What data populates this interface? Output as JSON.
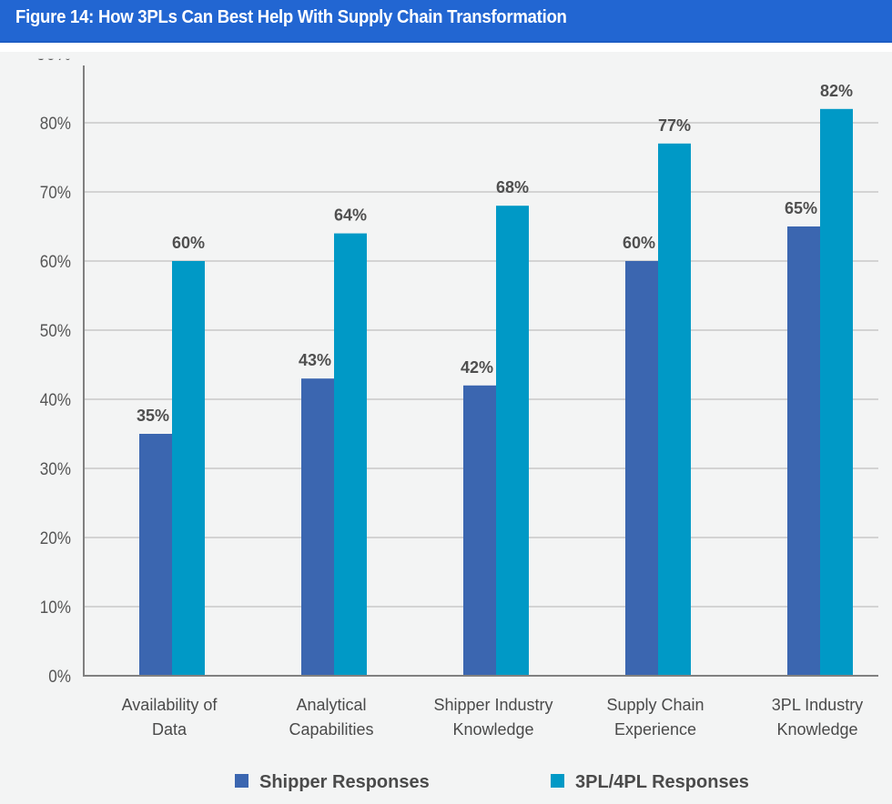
{
  "header": {
    "title": "Figure 14: How 3PLs Can Best Help With Supply Chain Transformation"
  },
  "colors": {
    "header_bg": "#2266d2",
    "shipper": "#3b66b0",
    "tpl": "#0099c6",
    "background": "#f3f4f4",
    "grid": "#d3d3d3",
    "axis": "#808080"
  },
  "chart_data": {
    "type": "bar",
    "title": "Figure 14: How 3PLs Can Best Help With Supply Chain Transformation",
    "xlabel": "",
    "ylabel": "",
    "categories": [
      [
        "Availability of",
        "Data"
      ],
      [
        "Analytical",
        "Capabilities"
      ],
      [
        "Shipper Industry",
        "Knowledge"
      ],
      [
        "Supply Chain",
        "Experience"
      ],
      [
        "3PL Industry",
        "Knowledge"
      ]
    ],
    "series": [
      {
        "name": "Shipper Responses",
        "values": [
          35,
          43,
          42,
          60,
          65
        ],
        "labels": [
          "35%",
          "43%",
          "42%",
          "60%",
          "65%"
        ]
      },
      {
        "name": "3PL/4PL Responses",
        "values": [
          60,
          64,
          68,
          77,
          82
        ],
        "labels": [
          "60%",
          "64%",
          "68%",
          "77%",
          "82%"
        ]
      }
    ],
    "ylim": [
      0,
      90
    ],
    "yticks": [
      0,
      10,
      20,
      30,
      40,
      50,
      60,
      70,
      80
    ],
    "ytick_labels": [
      "0%",
      "10%",
      "20%",
      "30%",
      "40%",
      "50%",
      "60%",
      "70%",
      "80%"
    ],
    "grid": true,
    "legend_position": "bottom-center"
  }
}
